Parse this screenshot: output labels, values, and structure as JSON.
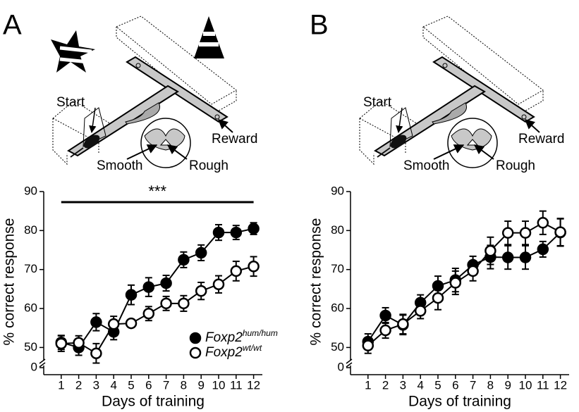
{
  "panels": [
    {
      "label": "A",
      "diagram": {
        "start": "Start",
        "reward": "Reward",
        "smooth": "Smooth",
        "rough": "Rough"
      },
      "cues": true
    },
    {
      "label": "B",
      "diagram": {
        "start": "Start",
        "reward": "Reward",
        "smooth": "Smooth",
        "rough": "Rough"
      },
      "cues": false
    }
  ],
  "chart_data": [
    {
      "type": "line",
      "x": [
        1,
        2,
        3,
        4,
        5,
        6,
        7,
        8,
        9,
        10,
        11,
        12
      ],
      "xlim": [
        0,
        12.5
      ],
      "xticks": [
        1,
        2,
        3,
        4,
        5,
        6,
        7,
        8,
        9,
        10,
        11,
        12
      ],
      "ylim": [
        47,
        90
      ],
      "yticks": [
        0,
        50,
        60,
        70,
        80,
        90
      ],
      "y_axis_break": true,
      "xlabel": "Days of training",
      "ylabel": "% correct response",
      "series": [
        {
          "name": "Foxp2",
          "name_suffix": "hum/hum",
          "marker": "filled",
          "color": "#000000",
          "values": [
            51.3,
            50,
            56.5,
            54,
            63.5,
            65.5,
            66.5,
            72.5,
            74.3,
            79.5,
            79.5,
            80.5
          ],
          "errors": [
            1.8,
            2,
            2.2,
            2,
            2.5,
            2.4,
            2,
            2,
            2,
            2,
            1.8,
            1.5
          ]
        },
        {
          "name": "Foxp2",
          "name_suffix": "wt/wt",
          "marker": "open",
          "color": "#000000",
          "values": [
            51,
            51.2,
            48.5,
            56,
            56.2,
            58.7,
            61.3,
            61.3,
            64.5,
            66.2,
            69.6,
            70.8
          ],
          "errors": [
            2,
            1.8,
            2.5,
            2,
            1,
            1.8,
            1.8,
            2,
            2.2,
            2.2,
            2.5,
            2.5
          ]
        }
      ],
      "legend": "lower right",
      "annotation": {
        "label": "***",
        "x_from": 1,
        "x_to": 12,
        "y": 87.3
      }
    },
    {
      "type": "line",
      "x": [
        1,
        2,
        3,
        4,
        5,
        6,
        7,
        8,
        9,
        10,
        11,
        12
      ],
      "xlim": [
        0,
        12.5
      ],
      "xticks": [
        1,
        2,
        3,
        4,
        5,
        6,
        7,
        8,
        9,
        10,
        11,
        12
      ],
      "ylim": [
        47,
        90
      ],
      "yticks": [
        0,
        50,
        60,
        70,
        80,
        90
      ],
      "y_axis_break": true,
      "xlabel": "Days of training",
      "ylabel": "% correct response",
      "series": [
        {
          "marker": "filled",
          "color": "#000000",
          "values": [
            51.5,
            58.2,
            55.8,
            61.5,
            65.8,
            67.3,
            71.2,
            73.2,
            73.1,
            73.1,
            75.2,
            79.5
          ],
          "errors": [
            2,
            2,
            2.5,
            2,
            2.5,
            3,
            2.2,
            3,
            3,
            3,
            2,
            3.5
          ]
        },
        {
          "marker": "open",
          "color": "#000000",
          "values": [
            50.5,
            54.4,
            56,
            59.4,
            62.7,
            66.6,
            69.6,
            74.8,
            79.4,
            79.4,
            82,
            79.6
          ],
          "errors": [
            2,
            2,
            2.5,
            2,
            3,
            3,
            2.5,
            3.5,
            3,
            3,
            3,
            3.5
          ]
        }
      ],
      "legend": false
    }
  ]
}
